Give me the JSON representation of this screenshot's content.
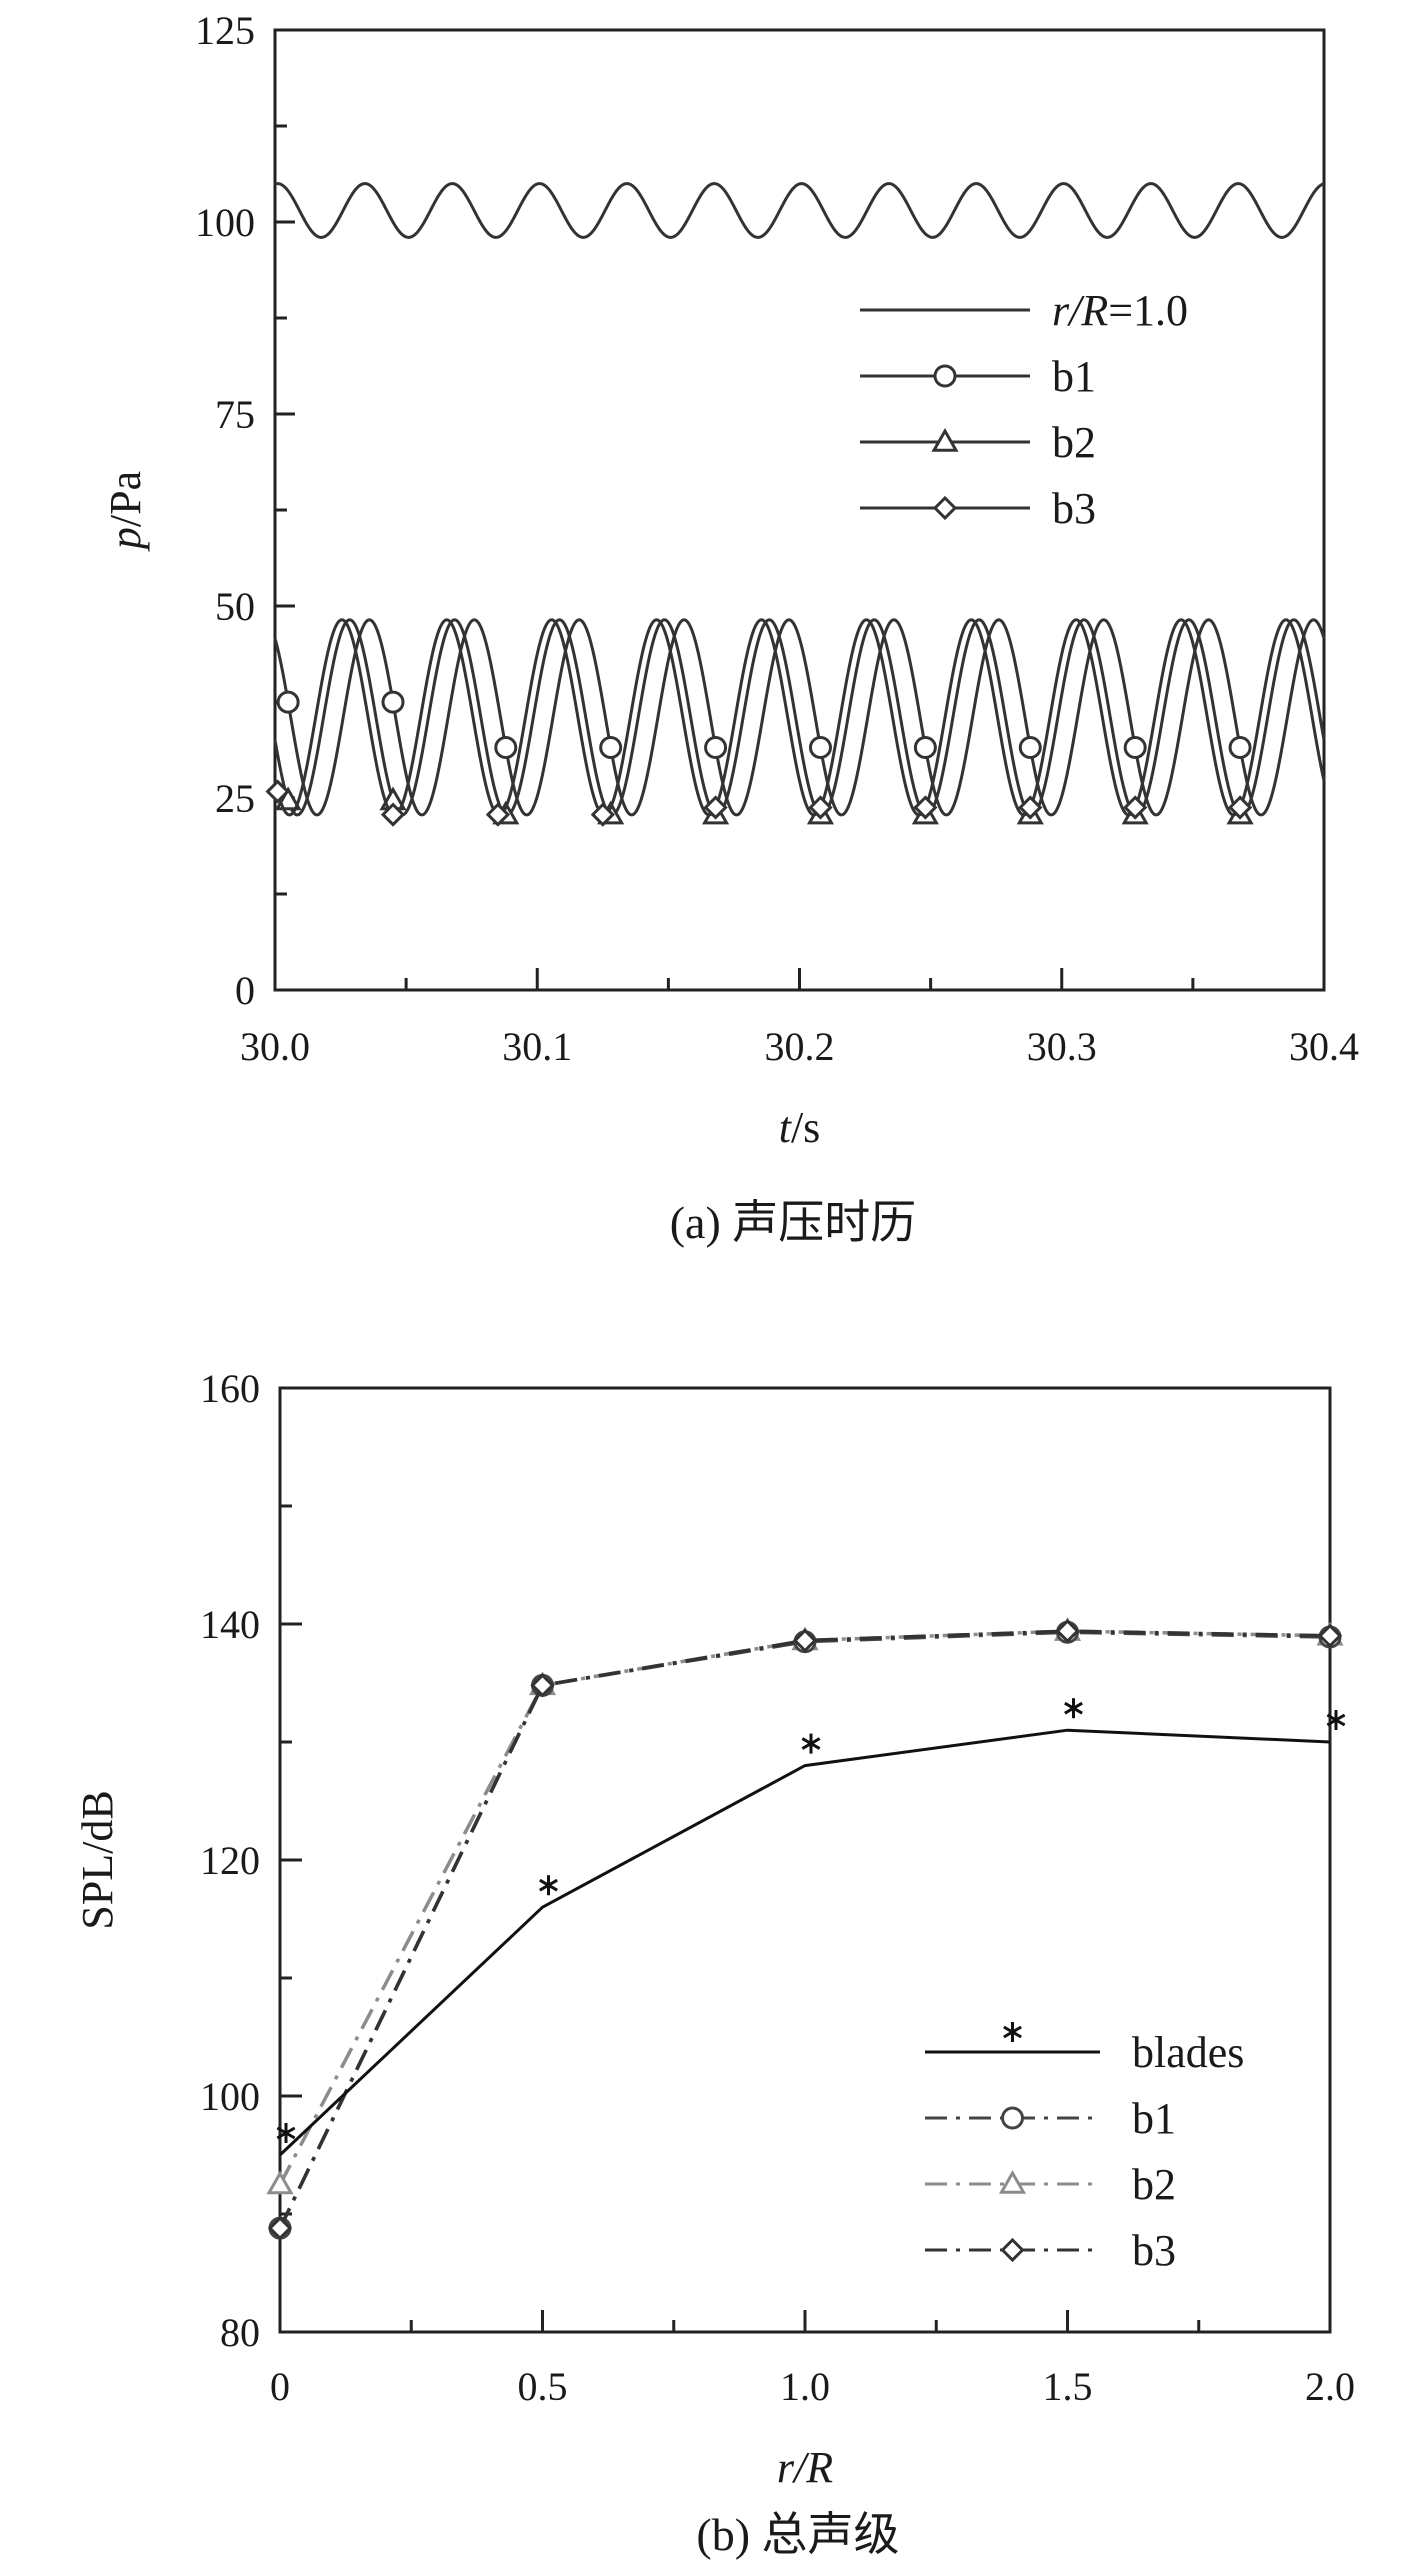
{
  "chart_data": [
    {
      "type": "line",
      "caption": "(a) 声压时历",
      "xlabel_italic": "t",
      "xlabel_unit": "/s",
      "ylabel_italic": "p",
      "ylabel_unit": "/Pa",
      "xlim": [
        30.0,
        30.4
      ],
      "ylim": [
        0,
        125
      ],
      "x_ticks": [
        30.0,
        30.1,
        30.2,
        30.3,
        30.4
      ],
      "x_tick_labels": [
        "30.0",
        "30.1",
        "30.2",
        "30.3",
        "30.4"
      ],
      "y_ticks": [
        0,
        25,
        50,
        75,
        100,
        125
      ],
      "y_tick_labels": [
        "0",
        "25",
        "50",
        "75",
        "100",
        "125"
      ],
      "legend_position": "upper-right",
      "grid": false,
      "series": [
        {
          "name": "r/R=1.0",
          "legend_italic": "r/R",
          "legend_rest": "=1.0",
          "marker": "none",
          "color": "#333333",
          "mean": 101.5,
          "amplitude": 3.5,
          "period": 0.0333,
          "peak_t": 30.001,
          "t_start": 30.0,
          "t_end": 30.4,
          "marker_t": []
        },
        {
          "name": "b1",
          "marker": "circle",
          "color": "#333333",
          "mean": 35.5,
          "amplitude": 12.7,
          "period": 0.04,
          "peak_t": 29.996,
          "t_start": 30.0,
          "t_end": 30.4,
          "marker_t": [
            30.005,
            30.045,
            30.088,
            30.128,
            30.168,
            30.208,
            30.248,
            30.288,
            30.328,
            30.368
          ]
        },
        {
          "name": "b2",
          "marker": "triangle",
          "color": "#333333",
          "mean": 35.5,
          "amplitude": 12.7,
          "period": 0.04,
          "peak_t": 30.0285,
          "t_start": 30.0,
          "t_end": 30.4,
          "marker_t": [
            30.005,
            30.045,
            30.088,
            30.128,
            30.168,
            30.208,
            30.248,
            30.288,
            30.328,
            30.368
          ]
        },
        {
          "name": "b3",
          "marker": "diamond",
          "color": "#333333",
          "mean": 35.5,
          "amplitude": 12.7,
          "period": 0.04,
          "peak_t": 30.0655,
          "t_start": 30.0,
          "t_end": 30.4,
          "marker_t": [
            30.001,
            30.045,
            30.085,
            30.125,
            30.168,
            30.208,
            30.248,
            30.288,
            30.328,
            30.368
          ]
        }
      ]
    },
    {
      "type": "line",
      "caption": "(b) 总声级",
      "xlabel_italic": "r/R",
      "xlabel_unit": "",
      "ylabel_italic": "",
      "ylabel_unit": "SPL/dB",
      "xlim": [
        0,
        2.0
      ],
      "ylim": [
        80,
        160
      ],
      "x_ticks": [
        0,
        0.5,
        1.0,
        1.5,
        2.0
      ],
      "x_tick_labels": [
        "0",
        "0.5",
        "1.0",
        "1.5",
        "2.0"
      ],
      "x_minor_ticks": [
        0.25,
        0.75,
        1.25,
        1.75
      ],
      "y_ticks": [
        80,
        100,
        120,
        140,
        160
      ],
      "y_tick_labels": [
        "80",
        "100",
        "120",
        "140",
        "160"
      ],
      "y_minor_ticks": [
        90,
        110,
        130,
        150
      ],
      "legend_position": "lower-right",
      "grid": false,
      "series": [
        {
          "name": "blades",
          "marker": "asterisk",
          "dash": "solid",
          "color": "#111111",
          "x": [
            0,
            0.5,
            1.0,
            1.5,
            2.0
          ],
          "y": [
            95.0,
            116.0,
            128.0,
            131.0,
            130.0
          ]
        },
        {
          "name": "b1",
          "marker": "circle",
          "dash": "dashdot",
          "color": "#444444",
          "x": [
            0,
            0.5,
            1.0,
            1.5,
            2.0
          ],
          "y": [
            88.8,
            134.8,
            138.5,
            139.3,
            138.9
          ]
        },
        {
          "name": "b2",
          "marker": "triangle",
          "dash": "dashdot",
          "color": "#8c8c8c",
          "x": [
            0,
            0.5,
            1.0,
            1.5,
            2.0
          ],
          "y": [
            92.5,
            134.8,
            138.6,
            139.4,
            139.0
          ]
        },
        {
          "name": "b3",
          "marker": "diamond",
          "dash": "dashdot",
          "color": "#333333",
          "x": [
            0,
            0.5,
            1.0,
            1.5,
            2.0
          ],
          "y": [
            88.8,
            134.8,
            138.6,
            139.4,
            139.0
          ]
        }
      ]
    }
  ]
}
